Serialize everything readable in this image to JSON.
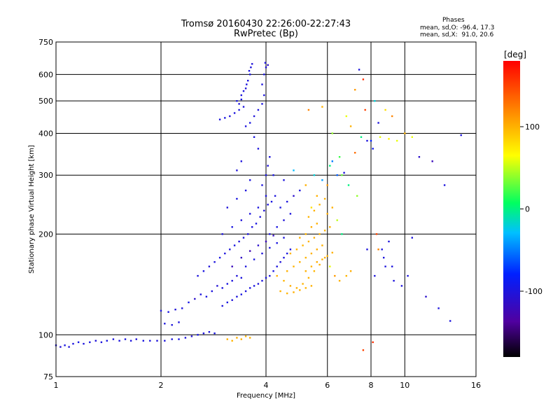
{
  "header": {
    "title_line1": "Tromsø 20160430 22:26:00-22:27:43",
    "title_line2": "RwPretec (Bp)"
  },
  "corner": {
    "heading": "Phases",
    "line_o": "mean, sd,O: -96.4, 17.3",
    "line_x": "mean, sd,X:  91.0, 20.6"
  },
  "colorbar": {
    "unit_label": "[deg]",
    "min": -180,
    "max": 180,
    "tick_values": [
      100,
      0,
      -100
    ],
    "tick_labels": [
      "100",
      "0",
      "-100"
    ]
  },
  "chart_data": {
    "type": "scatter",
    "title": "Tromsø 20160430 22:26:00-22:27:43",
    "subtitle": "RwPretec (Bp)",
    "xlabel": "Frequency [MHz]",
    "ylabel": "Stationary phase Virtual Height [km]",
    "xscale": "log",
    "yscale": "log",
    "xlim": [
      1,
      16
    ],
    "ylim": [
      75,
      750
    ],
    "x_ticks": [
      1,
      2,
      4,
      6,
      8,
      10,
      16
    ],
    "x_tick_labels": [
      "1",
      "2",
      "4",
      "6",
      "8",
      "10",
      "16"
    ],
    "y_ticks": [
      75,
      100,
      200,
      300,
      400,
      500,
      600,
      750
    ],
    "y_tick_labels": [
      "75",
      "100",
      "200",
      "300",
      "400",
      "500",
      "600",
      "750"
    ],
    "grid": true,
    "color_encodes": "phase [deg]",
    "points": [
      [
        1.0,
        93,
        -100
      ],
      [
        1.03,
        92,
        -105
      ],
      [
        1.06,
        93,
        -98
      ],
      [
        1.09,
        92,
        -102
      ],
      [
        1.12,
        94,
        -100
      ],
      [
        1.16,
        95,
        -95
      ],
      [
        1.2,
        94,
        -100
      ],
      [
        1.25,
        95,
        -98
      ],
      [
        1.3,
        96,
        -102
      ],
      [
        1.35,
        95,
        -100
      ],
      [
        1.4,
        96,
        -97
      ],
      [
        1.46,
        97,
        -101
      ],
      [
        1.52,
        96,
        -100
      ],
      [
        1.58,
        97,
        -99
      ],
      [
        1.64,
        96,
        -100
      ],
      [
        1.7,
        97,
        -103
      ],
      [
        1.78,
        96,
        -98
      ],
      [
        1.86,
        96,
        -100
      ],
      [
        1.95,
        96,
        -101
      ],
      [
        2.05,
        96,
        -99
      ],
      [
        2.15,
        97,
        -100
      ],
      [
        2.25,
        97,
        -98
      ],
      [
        2.35,
        98,
        -100
      ],
      [
        2.45,
        99,
        -105
      ],
      [
        2.55,
        100,
        -95
      ],
      [
        2.65,
        101,
        -100
      ],
      [
        2.75,
        102,
        -100
      ],
      [
        2.85,
        101,
        -98
      ],
      [
        2.0,
        118,
        -100
      ],
      [
        2.1,
        117,
        -98
      ],
      [
        2.2,
        119,
        -102
      ],
      [
        2.3,
        120,
        -100
      ],
      [
        2.05,
        108,
        -99
      ],
      [
        2.15,
        107,
        -101
      ],
      [
        2.25,
        109,
        -100
      ],
      [
        2.4,
        125,
        -95
      ],
      [
        2.5,
        128,
        -110
      ],
      [
        2.6,
        132,
        -100
      ],
      [
        2.7,
        130,
        -98
      ],
      [
        2.8,
        135,
        -100
      ],
      [
        2.9,
        140,
        -105
      ],
      [
        3.0,
        138,
        -100
      ],
      [
        3.1,
        142,
        -98
      ],
      [
        3.2,
        145,
        -100
      ],
      [
        3.3,
        150,
        -102
      ],
      [
        3.4,
        148,
        -100
      ],
      [
        2.55,
        150,
        -100
      ],
      [
        2.65,
        155,
        -98
      ],
      [
        2.75,
        160,
        -102
      ],
      [
        2.85,
        165,
        -100
      ],
      [
        2.95,
        170,
        -97
      ],
      [
        3.05,
        175,
        -100
      ],
      [
        3.15,
        180,
        -100
      ],
      [
        3.25,
        185,
        -98
      ],
      [
        3.35,
        190,
        -102
      ],
      [
        3.45,
        195,
        -100
      ],
      [
        3.55,
        200,
        -99
      ],
      [
        3.65,
        210,
        -100
      ],
      [
        3.75,
        215,
        -98
      ],
      [
        3.85,
        225,
        -100
      ],
      [
        3.95,
        235,
        -102
      ],
      [
        4.05,
        245,
        -100
      ],
      [
        4.15,
        250,
        -98
      ],
      [
        4.25,
        260,
        -100
      ],
      [
        3.0,
        122,
        -100
      ],
      [
        3.1,
        125,
        -98
      ],
      [
        3.2,
        127,
        -102
      ],
      [
        3.3,
        130,
        -100
      ],
      [
        3.4,
        132,
        -97
      ],
      [
        3.5,
        135,
        -100
      ],
      [
        3.6,
        138,
        -100
      ],
      [
        3.7,
        140,
        -98
      ],
      [
        3.8,
        142,
        -102
      ],
      [
        3.9,
        145,
        -100
      ],
      [
        4.0,
        148,
        -99
      ],
      [
        4.1,
        150,
        -100
      ],
      [
        4.2,
        155,
        -98
      ],
      [
        4.3,
        160,
        -100
      ],
      [
        4.4,
        165,
        -102
      ],
      [
        4.5,
        170,
        -100
      ],
      [
        4.6,
        175,
        -98
      ],
      [
        4.7,
        180,
        -100
      ],
      [
        3.2,
        160,
        -120
      ],
      [
        3.4,
        170,
        -115
      ],
      [
        3.6,
        178,
        -125
      ],
      [
        3.8,
        185,
        -110
      ],
      [
        4.0,
        190,
        -120
      ],
      [
        4.2,
        198,
        -118
      ],
      [
        3.5,
        160,
        -100
      ],
      [
        3.7,
        168,
        -98
      ],
      [
        3.9,
        175,
        -102
      ],
      [
        4.1,
        182,
        -100
      ],
      [
        4.3,
        188,
        -97
      ],
      [
        4.5,
        195,
        -100
      ],
      [
        3.0,
        200,
        -100
      ],
      [
        3.2,
        210,
        -98
      ],
      [
        3.4,
        220,
        -102
      ],
      [
        3.6,
        230,
        -100
      ],
      [
        3.8,
        240,
        -99
      ],
      [
        4.0,
        260,
        -100
      ],
      [
        3.9,
        280,
        -100
      ],
      [
        4.0,
        300,
        -98
      ],
      [
        4.05,
        320,
        -102
      ],
      [
        4.1,
        340,
        -100
      ],
      [
        3.8,
        360,
        -100
      ],
      [
        3.7,
        390,
        -98
      ],
      [
        3.4,
        330,
        -100
      ],
      [
        3.3,
        310,
        -102
      ],
      [
        3.6,
        290,
        -99
      ],
      [
        3.5,
        270,
        -100
      ],
      [
        3.3,
        255,
        -98
      ],
      [
        3.1,
        240,
        -102
      ],
      [
        2.95,
        440,
        -100
      ],
      [
        3.05,
        445,
        -98
      ],
      [
        3.15,
        450,
        -102
      ],
      [
        3.25,
        460,
        -100
      ],
      [
        3.35,
        470,
        -99
      ],
      [
        3.45,
        480,
        -100
      ],
      [
        3.3,
        500,
        -98
      ],
      [
        3.4,
        520,
        -100
      ],
      [
        3.5,
        545,
        -102
      ],
      [
        3.55,
        575,
        -100
      ],
      [
        3.6,
        600,
        -98
      ],
      [
        3.62,
        630,
        -100
      ],
      [
        3.65,
        645,
        -102
      ],
      [
        3.58,
        615,
        -100
      ],
      [
        3.52,
        560,
        -99
      ],
      [
        3.45,
        535,
        -100
      ],
      [
        3.4,
        505,
        -98
      ],
      [
        3.35,
        490,
        -100
      ],
      [
        3.5,
        420,
        -100
      ],
      [
        3.6,
        430,
        -98
      ],
      [
        3.7,
        450,
        -102
      ],
      [
        3.8,
        470,
        -100
      ],
      [
        3.9,
        490,
        -99
      ],
      [
        3.95,
        520,
        -100
      ],
      [
        3.9,
        560,
        -100
      ],
      [
        3.95,
        600,
        -98
      ],
      [
        4.0,
        630,
        -102
      ],
      [
        3.98,
        650,
        -100
      ],
      [
        4.05,
        640,
        -110
      ],
      [
        4.1,
        200,
        -100
      ],
      [
        4.3,
        210,
        -98
      ],
      [
        4.5,
        220,
        -102
      ],
      [
        4.7,
        230,
        -100
      ],
      [
        4.4,
        240,
        -99
      ],
      [
        4.6,
        250,
        -100
      ],
      [
        4.8,
        260,
        -110
      ],
      [
        5.0,
        270,
        -100
      ],
      [
        4.2,
        300,
        -98
      ],
      [
        4.5,
        290,
        -100
      ],
      [
        4.3,
        150,
        100
      ],
      [
        4.5,
        145,
        98
      ],
      [
        4.7,
        140,
        102
      ],
      [
        4.9,
        138,
        100
      ],
      [
        5.1,
        142,
        99
      ],
      [
        5.3,
        148,
        100
      ],
      [
        5.5,
        155,
        98
      ],
      [
        5.7,
        162,
        100
      ],
      [
        5.9,
        170,
        102
      ],
      [
        4.6,
        155,
        100
      ],
      [
        4.8,
        160,
        99
      ],
      [
        5.0,
        165,
        100
      ],
      [
        5.2,
        170,
        98
      ],
      [
        5.4,
        175,
        100
      ],
      [
        5.6,
        180,
        102
      ],
      [
        5.8,
        185,
        100
      ],
      [
        4.7,
        175,
        99
      ],
      [
        4.9,
        180,
        100
      ],
      [
        5.1,
        185,
        98
      ],
      [
        5.3,
        190,
        100
      ],
      [
        5.5,
        195,
        102
      ],
      [
        5.7,
        200,
        100
      ],
      [
        5.9,
        205,
        99
      ],
      [
        6.1,
        210,
        100
      ],
      [
        4.4,
        135,
        100
      ],
      [
        4.6,
        133,
        98
      ],
      [
        4.8,
        134,
        102
      ],
      [
        5.0,
        136,
        100
      ],
      [
        5.2,
        138,
        99
      ],
      [
        5.4,
        140,
        100
      ],
      [
        5.2,
        155,
        100
      ],
      [
        5.4,
        160,
        98
      ],
      [
        5.6,
        165,
        102
      ],
      [
        5.8,
        168,
        100
      ],
      [
        6.0,
        172,
        99
      ],
      [
        6.2,
        176,
        100
      ],
      [
        5.0,
        195,
        100
      ],
      [
        5.2,
        200,
        98
      ],
      [
        5.4,
        210,
        102
      ],
      [
        5.6,
        215,
        100
      ],
      [
        5.3,
        225,
        99
      ],
      [
        5.5,
        235,
        100
      ],
      [
        5.7,
        245,
        98
      ],
      [
        5.9,
        255,
        100
      ],
      [
        6.0,
        230,
        102
      ],
      [
        6.2,
        240,
        100
      ],
      [
        6.4,
        220,
        50
      ],
      [
        6.6,
        200,
        0
      ],
      [
        6.1,
        160,
        60
      ],
      [
        6.3,
        150,
        110
      ],
      [
        6.5,
        145,
        100
      ],
      [
        6.8,
        150,
        98
      ],
      [
        7.0,
        155,
        102
      ],
      [
        3.1,
        97,
        100
      ],
      [
        3.2,
        96,
        98
      ],
      [
        3.3,
        98,
        102
      ],
      [
        3.4,
        97,
        100
      ],
      [
        3.5,
        99,
        99
      ],
      [
        3.6,
        98,
        100
      ],
      [
        5.2,
        280,
        100
      ],
      [
        5.5,
        300,
        -20
      ],
      [
        5.8,
        290,
        -40
      ],
      [
        6.1,
        320,
        0
      ],
      [
        6.4,
        300,
        -60
      ],
      [
        6.7,
        305,
        -100
      ],
      [
        5.3,
        470,
        120
      ],
      [
        5.8,
        480,
        100
      ],
      [
        6.2,
        400,
        40
      ],
      [
        6.8,
        450,
        60
      ],
      [
        7.0,
        420,
        100
      ],
      [
        7.2,
        350,
        130
      ],
      [
        6.6,
        300,
        30
      ],
      [
        7.5,
        390,
        0
      ],
      [
        8.0,
        380,
        -80
      ],
      [
        8.5,
        390,
        60
      ],
      [
        9.0,
        385,
        70
      ],
      [
        9.5,
        380,
        60
      ],
      [
        7.2,
        540,
        110
      ],
      [
        7.7,
        470,
        150
      ],
      [
        8.2,
        500,
        -20
      ],
      [
        8.4,
        430,
        -100
      ],
      [
        8.8,
        470,
        80
      ],
      [
        9.2,
        450,
        120
      ],
      [
        10.0,
        400,
        100
      ],
      [
        10.5,
        390,
        60
      ],
      [
        11.0,
        340,
        -110
      ],
      [
        12.0,
        330,
        -120
      ],
      [
        13.0,
        280,
        -100
      ],
      [
        14.5,
        395,
        -100
      ],
      [
        7.4,
        620,
        -100
      ],
      [
        7.6,
        580,
        160
      ],
      [
        7.8,
        380,
        -100
      ],
      [
        8.1,
        360,
        -90
      ],
      [
        8.6,
        180,
        -100
      ],
      [
        9.0,
        190,
        -100
      ],
      [
        7.8,
        180,
        -100
      ],
      [
        8.2,
        150,
        -100
      ],
      [
        8.8,
        160,
        -100
      ],
      [
        9.3,
        145,
        -100
      ],
      [
        9.8,
        140,
        -100
      ],
      [
        10.5,
        195,
        -100
      ],
      [
        11.5,
        130,
        -110
      ],
      [
        12.5,
        120,
        -100
      ],
      [
        13.5,
        110,
        -100
      ],
      [
        7.6,
        90,
        150
      ],
      [
        8.1,
        95,
        160
      ],
      [
        8.4,
        180,
        120
      ],
      [
        8.3,
        200,
        150
      ],
      [
        8.7,
        170,
        -100
      ],
      [
        9.2,
        160,
        -100
      ],
      [
        10.2,
        150,
        -100
      ],
      [
        6.9,
        280,
        0
      ],
      [
        7.3,
        260,
        40
      ],
      [
        6.2,
        330,
        -50
      ],
      [
        6.5,
        340,
        20
      ],
      [
        6.0,
        280,
        110
      ],
      [
        5.6,
        260,
        100
      ],
      [
        5.4,
        240,
        80
      ],
      [
        4.8,
        310,
        -30
      ]
    ]
  }
}
